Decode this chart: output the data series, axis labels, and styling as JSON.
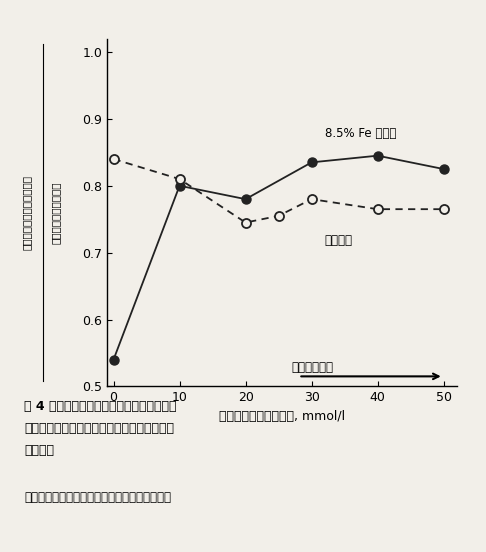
{
  "fe_x": [
    0,
    10,
    20,
    30,
    40,
    50
  ],
  "fe_y": [
    0.54,
    0.8,
    0.78,
    0.835,
    0.845,
    0.825
  ],
  "no_x": [
    0,
    10,
    20,
    25,
    30,
    40,
    50
  ],
  "no_y": [
    0.84,
    0.81,
    0.745,
    0.755,
    0.78,
    0.765,
    0.765
  ],
  "xlim": [
    -1,
    52
  ],
  "ylim": [
    0.5,
    1.02
  ],
  "xticks": [
    0,
    10,
    20,
    30,
    40,
    50
  ],
  "yticks": [
    0.5,
    0.6,
    0.7,
    0.8,
    0.9,
    1.0
  ],
  "xlabel": "アスコルビン酸添加量, mmol/l",
  "ylabel1": "還元処理後の水中沈定容積",
  "ylabel2": "風乾前の水中沈定容積",
  "label_fe": "8.5% Fe 添加区",
  "label_no": "無添加区",
  "arrow_text": "強い還元状態",
  "caption_line1": "围 4 風乾したスメクタイトー鉄複合体への",
  "caption_line2": "アスコルビン酸還元処理による　水中沈定容",
  "caption_line3": "積の増加",
  "note": "注）水田化が進むと、縦軸の値が大きくなる。",
  "bg_color": "#f2efe9",
  "fe_color": "#222222",
  "no_color": "#222222"
}
